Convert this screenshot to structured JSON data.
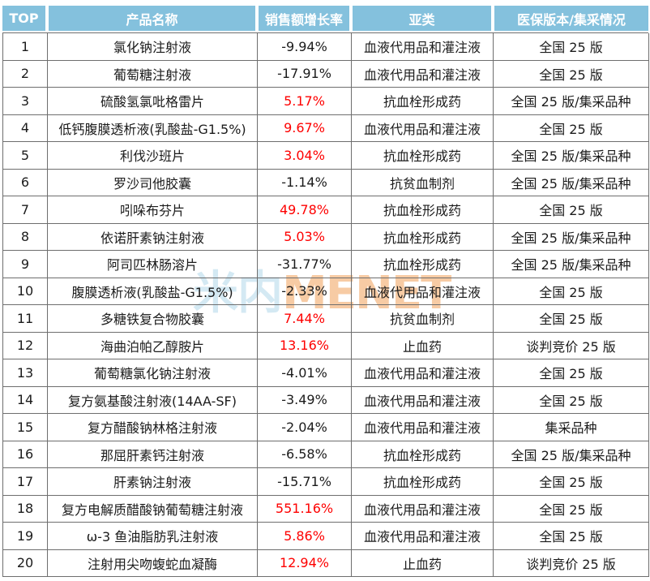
{
  "chart_data": {
    "type": "table",
    "columns": [
      "TOP",
      "产品名称",
      "销售额增长率",
      "亚类",
      "医保版本/集采情况"
    ],
    "rows": [
      {
        "rank": "1",
        "product": "氯化钠注射液",
        "growth": "-9.94%",
        "growth_color": "#1b1b1b",
        "subcategory": "血液代用品和灌注液",
        "insurance": "全国 25 版"
      },
      {
        "rank": "2",
        "product": "葡萄糖注射液",
        "growth": "-17.91%",
        "growth_color": "#1b1b1b",
        "subcategory": "血液代用品和灌注液",
        "insurance": "全国 25 版"
      },
      {
        "rank": "3",
        "product": "硫酸氢氯吡格雷片",
        "growth": "5.17%",
        "growth_color": "#fe0000",
        "subcategory": "抗血栓形成药",
        "insurance": "全国 25 版/集采品种"
      },
      {
        "rank": "4",
        "product": "低钙腹膜透析液(乳酸盐-G1.5%)",
        "growth": "9.67%",
        "growth_color": "#fe0000",
        "subcategory": "血液代用品和灌注液",
        "insurance": "全国 25 版"
      },
      {
        "rank": "5",
        "product": "利伐沙班片",
        "growth": "3.04%",
        "growth_color": "#fe0000",
        "subcategory": "抗血栓形成药",
        "insurance": "全国 25 版/集采品种"
      },
      {
        "rank": "6",
        "product": "罗沙司他胶囊",
        "growth": "-1.14%",
        "growth_color": "#1b1b1b",
        "subcategory": "抗贫血制剂",
        "insurance": "全国 25 版/集采品种"
      },
      {
        "rank": "7",
        "product": "吲哚布芬片",
        "growth": "49.78%",
        "growth_color": "#fe0000",
        "subcategory": "抗血栓形成药",
        "insurance": "全国 25 版"
      },
      {
        "rank": "8",
        "product": "依诺肝素钠注射液",
        "growth": "5.03%",
        "growth_color": "#fe0000",
        "subcategory": "抗血栓形成药",
        "insurance": "全国 25 版/集采品种"
      },
      {
        "rank": "9",
        "product": "阿司匹林肠溶片",
        "growth": "-31.77%",
        "growth_color": "#1b1b1b",
        "subcategory": "抗血栓形成药",
        "insurance": "全国 25 版/集采品种"
      },
      {
        "rank": "10",
        "product": "腹膜透析液(乳酸盐-G1.5%)",
        "growth": "-2.33%",
        "growth_color": "#1b1b1b",
        "subcategory": "血液代用品和灌注液",
        "insurance": "全国 25 版"
      },
      {
        "rank": "11",
        "product": "多糖铁复合物胶囊",
        "growth": "7.44%",
        "growth_color": "#fe0000",
        "subcategory": "抗贫血制剂",
        "insurance": "全国 25 版"
      },
      {
        "rank": "12",
        "product": "海曲泊帕乙醇胺片",
        "growth": "13.16%",
        "growth_color": "#fe0000",
        "subcategory": "止血药",
        "insurance": "谈判竞价 25 版"
      },
      {
        "rank": "13",
        "product": "葡萄糖氯化钠注射液",
        "growth": "-4.01%",
        "growth_color": "#1b1b1b",
        "subcategory": "血液代用品和灌注液",
        "insurance": "全国 25 版"
      },
      {
        "rank": "14",
        "product": "复方氨基酸注射液(14AA-SF)",
        "growth": "-3.49%",
        "growth_color": "#1b1b1b",
        "subcategory": "血液代用品和灌注液",
        "insurance": "全国 25 版"
      },
      {
        "rank": "15",
        "product": "复方醋酸钠林格注射液",
        "growth": "-2.04%",
        "growth_color": "#1b1b1b",
        "subcategory": "血液代用品和灌注液",
        "insurance": "集采品种"
      },
      {
        "rank": "16",
        "product": "那屈肝素钙注射液",
        "growth": "-6.58%",
        "growth_color": "#1b1b1b",
        "subcategory": "抗血栓形成药",
        "insurance": "全国 25 版/集采品种"
      },
      {
        "rank": "17",
        "product": "肝素钠注射液",
        "growth": "-15.71%",
        "growth_color": "#1b1b1b",
        "subcategory": "抗血栓形成药",
        "insurance": "全国 25 版"
      },
      {
        "rank": "18",
        "product": "复方电解质醋酸钠葡萄糖注射液",
        "growth": "551.16%",
        "growth_color": "#fe0000",
        "subcategory": "血液代用品和灌注液",
        "insurance": "全国 25 版"
      },
      {
        "rank": "19",
        "product": "ω-3 鱼油脂肪乳注射液",
        "growth": "5.86%",
        "growth_color": "#fe0000",
        "subcategory": "血液代用品和灌注液",
        "insurance": "全国 25 版"
      },
      {
        "rank": "20",
        "product": "注射用尖吻蝮蛇血凝酶",
        "growth": "12.94%",
        "growth_color": "#fe0000",
        "subcategory": "止血药",
        "insurance": "谈判竞价 25 版"
      }
    ]
  },
  "watermark": {
    "cn": "米内",
    "en": "MENET"
  },
  "colors": {
    "header_bg": "#84c1dd",
    "header_text": "#ffffff",
    "border": "#6e6e6e",
    "body_text": "#1b1b1b",
    "positive_growth": "#fe0000",
    "watermark_cn": "#d4e9f3",
    "watermark_en": "#f7cba4"
  }
}
